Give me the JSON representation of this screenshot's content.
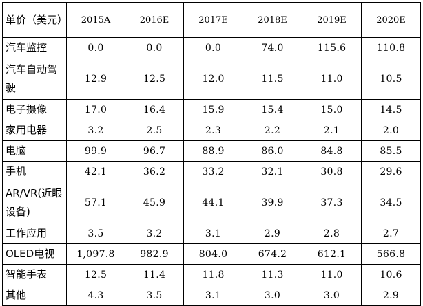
{
  "table": {
    "corner_label": "单价（美元）",
    "columns": [
      "2015A",
      "2016E",
      "2017E",
      "2018E",
      "2019E",
      "2020E"
    ],
    "rows": [
      {
        "label": "汽车监控",
        "values": [
          "0.0",
          "0.0",
          "0.0",
          "74.0",
          "115.6",
          "110.8"
        ]
      },
      {
        "label": "汽车自动驾驶",
        "values": [
          "12.9",
          "12.5",
          "12.0",
          "11.5",
          "11.0",
          "10.5"
        ]
      },
      {
        "label": "电子摄像",
        "values": [
          "17.0",
          "16.4",
          "15.9",
          "15.4",
          "15.0",
          "14.5"
        ]
      },
      {
        "label": "家用电器",
        "values": [
          "3.2",
          "2.5",
          "2.3",
          "2.2",
          "2.1",
          "2.0"
        ]
      },
      {
        "label": "电脑",
        "values": [
          "99.9",
          "96.7",
          "88.9",
          "86.0",
          "84.8",
          "85.5"
        ]
      },
      {
        "label": "手机",
        "values": [
          "42.1",
          "36.2",
          "33.2",
          "32.1",
          "30.8",
          "29.6"
        ]
      },
      {
        "label": "AR/VR(近眼设备)",
        "values": [
          "57.1",
          "45.9",
          "44.1",
          "39.9",
          "37.3",
          "34.5"
        ]
      },
      {
        "label": "工作应用",
        "values": [
          "3.5",
          "3.2",
          "3.1",
          "2.9",
          "2.8",
          "2.7"
        ]
      },
      {
        "label": "OLED电视",
        "values": [
          "1,097.8",
          "982.9",
          "804.0",
          "674.2",
          "612.1",
          "566.8"
        ]
      },
      {
        "label": "智能手表",
        "values": [
          "12.5",
          "11.4",
          "11.8",
          "11.3",
          "11.0",
          "10.6"
        ]
      },
      {
        "label": "其他",
        "values": [
          "4.3",
          "3.5",
          "3.1",
          "3.0",
          "3.0",
          "2.9"
        ]
      }
    ]
  }
}
